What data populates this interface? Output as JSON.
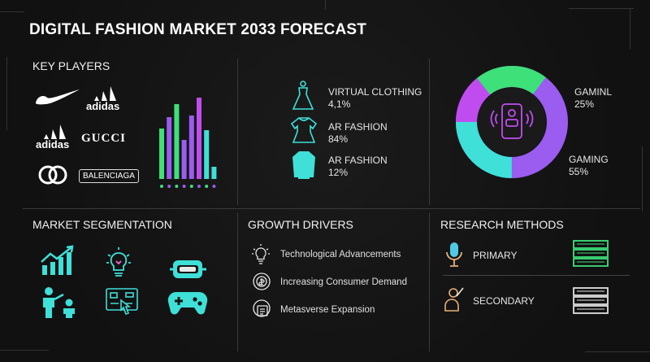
{
  "title": "DIGITAL FASHION MARKET 2033 FORECAST",
  "key_players": {
    "heading": "KEY PLAYERS",
    "brands": [
      "adidas",
      "adidas",
      "GUCCI",
      "BALENCIAGA"
    ]
  },
  "chart_data": {
    "type": "bar",
    "values": [
      0.62,
      0.76,
      0.92,
      0.48,
      0.78,
      1.0,
      0.6,
      0.15
    ],
    "colors": [
      "#3ee07a",
      "#9b5cf0",
      "#3ee07a",
      "#9b5cf0",
      "#9b5cf0",
      "#c04cf0",
      "#3ee0d8",
      "#3ee0d8"
    ]
  },
  "segments": [
    {
      "icon": "dress-icon",
      "name": "VIRTUAL CLOTHING",
      "value": "4,1%"
    },
    {
      "icon": "shirt-dress-icon",
      "name": "AR FASHION",
      "value": "84%"
    },
    {
      "icon": "sweater-icon",
      "name": "AR FASHION",
      "value": "12%"
    }
  ],
  "donut": {
    "labels": [
      {
        "name": "GAMINL",
        "value": "25%"
      },
      {
        "name": "GAMING",
        "value": "55%"
      }
    ],
    "colors": {
      "purple": "#9b5cf0",
      "cyan": "#3ee0d8",
      "green": "#3ee07a",
      "magenta": "#c04cf0"
    }
  },
  "market_segmentation": {
    "heading": "MARKET SEGMENTATION"
  },
  "growth_drivers": {
    "heading": "GROWTH DRIVERS",
    "items": [
      "Technological Advancements",
      "Increasing Consumer Demand",
      "Metasverse Expansion"
    ]
  },
  "research_methods": {
    "heading": "RESEARCH METHODS",
    "items": [
      "PRIMARY",
      "SECONDARY"
    ]
  }
}
